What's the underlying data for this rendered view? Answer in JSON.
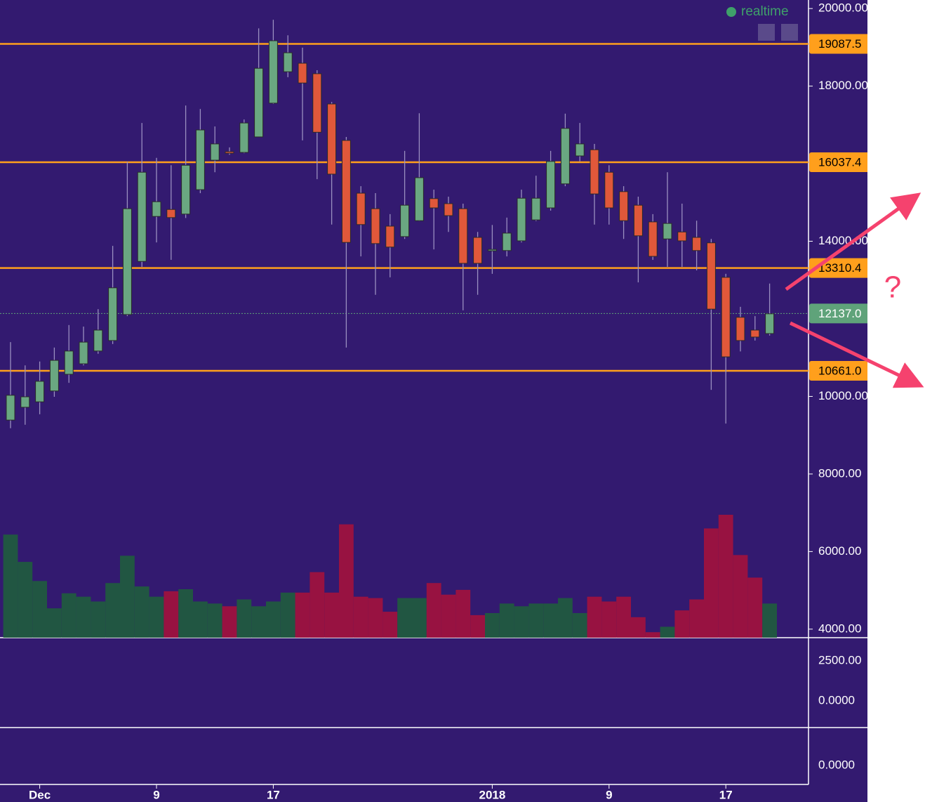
{
  "chart_data": {
    "type": "candlestick",
    "status": "realtime",
    "categories": [
      null,
      null,
      "Dec",
      null,
      null,
      null,
      null,
      null,
      null,
      null,
      "9",
      null,
      null,
      null,
      null,
      null,
      null,
      null,
      "17",
      null,
      null,
      null,
      null,
      null,
      null,
      null,
      null,
      null,
      null,
      null,
      null,
      null,
      null,
      "2018",
      null,
      null,
      null,
      null,
      null,
      null,
      null,
      "9",
      null,
      null,
      null,
      null,
      null,
      null,
      null,
      "17",
      null,
      null,
      null
    ],
    "open": [
      9390,
      9720,
      9860,
      10140,
      10570,
      10840,
      11170,
      11440,
      12110,
      13480,
      14640,
      14820,
      14700,
      15330,
      16090,
      16310,
      16290,
      16690,
      17560,
      18370,
      18590,
      18320,
      17540,
      16600,
      15240,
      14840,
      14390,
      14120,
      14530,
      15100,
      14970,
      14840,
      14100,
      13760,
      13760,
      14010,
      14550,
      14860,
      15480,
      16200,
      16360,
      15780,
      15280,
      14930,
      14500,
      14060,
      14240,
      14100,
      13960,
      13070,
      12040,
      11710,
      11620
    ],
    "high": [
      11400,
      10800,
      10900,
      11260,
      11840,
      11800,
      12250,
      13880,
      16050,
      17050,
      16150,
      15960,
      17500,
      17410,
      16960,
      16420,
      17140,
      19490,
      19710,
      19310,
      18990,
      18410,
      17590,
      16690,
      15420,
      15240,
      14700,
      16330,
      17300,
      15330,
      15150,
      14970,
      14240,
      14420,
      14610,
      15330,
      15690,
      16330,
      17290,
      17050,
      16510,
      15960,
      15420,
      15150,
      14700,
      15780,
      14970,
      14530,
      14060,
      13160,
      12310,
      12070,
      12910
    ],
    "low": [
      9180,
      9270,
      9540,
      9990,
      10350,
      10800,
      11100,
      11350,
      12070,
      13340,
      13970,
      13520,
      14600,
      15240,
      15780,
      16230,
      16270,
      16690,
      17540,
      18230,
      16600,
      15600,
      14430,
      11260,
      13610,
      12620,
      13070,
      14060,
      14520,
      13790,
      14240,
      12220,
      12620,
      13160,
      13610,
      13970,
      14520,
      14790,
      15420,
      16060,
      14430,
      14430,
      14060,
      12940,
      13520,
      13340,
      13340,
      13250,
      10170,
      9300,
      11160,
      11440,
      11570
    ],
    "close": [
      10030,
      9990,
      10390,
      10930,
      11170,
      11400,
      11710,
      12800,
      14840,
      15780,
      15020,
      14610,
      15960,
      16870,
      16510,
      16270,
      17050,
      18460,
      19170,
      18860,
      18080,
      16810,
      15730,
      13970,
      14430,
      13940,
      13850,
      14930,
      15640,
      14860,
      14660,
      13430,
      13430,
      13790,
      14210,
      15110,
      15110,
      16060,
      16910,
      16510,
      15220,
      14860,
      14530,
      14140,
      13610,
      14460,
      14010,
      13760,
      12250,
      11020,
      11440,
      11530,
      12130
    ],
    "volume": [
      151,
      111,
      83,
      43,
      65,
      60,
      53,
      80,
      120,
      75,
      60,
      68,
      71,
      53,
      50,
      46,
      56,
      46,
      53,
      66,
      66,
      96,
      66,
      166,
      60,
      58,
      38,
      58,
      58,
      80,
      63,
      70,
      33,
      36,
      50,
      46,
      50,
      50,
      58,
      36,
      60,
      53,
      60,
      30,
      8,
      16,
      40,
      56,
      160,
      180,
      121,
      88,
      50
    ],
    "up_color": "#6aa781",
    "down_color": "#e0583a",
    "volume_up_color": "#1f5d3d",
    "volume_down_color": "#a3123c",
    "ylim": [
      3780,
      20220
    ],
    "yticks": [
      {
        "value": 4000,
        "label": "4000.00"
      },
      {
        "value": 6000,
        "label": "6000.00"
      },
      {
        "value": 8000,
        "label": "8000.00"
      },
      {
        "value": 10000,
        "label": "10000.00"
      },
      {
        "value": 14000,
        "label": "14000.00"
      },
      {
        "value": 18000,
        "label": "18000.00"
      },
      {
        "value": 20000,
        "label": "20000.00"
      }
    ],
    "levels": [
      {
        "value": 19087.5,
        "label": "19087.5"
      },
      {
        "value": 16037.4,
        "label": "16037.4"
      },
      {
        "value": 13310.4,
        "label": "13310.4"
      },
      {
        "value": 10661.0,
        "label": "10661.0"
      }
    ],
    "level_color": "#ff9f1c",
    "last_price": {
      "value": 12137.0,
      "label": "12137.0"
    },
    "last_price_color": "#5fa37a",
    "macd_ticks": [
      "2500.00",
      "0.0000"
    ],
    "rsi_ticks": [
      "0.0000"
    ],
    "annotation": "?"
  }
}
